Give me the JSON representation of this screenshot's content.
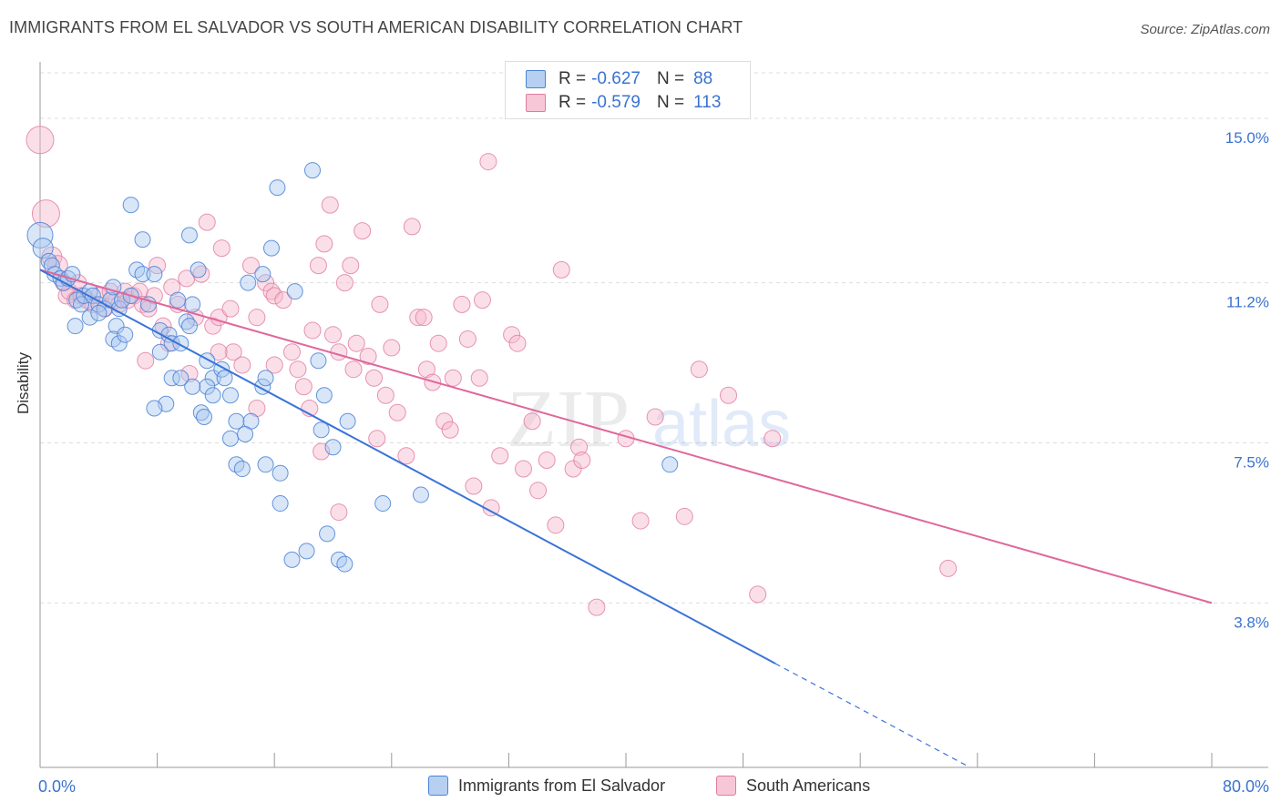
{
  "title": "IMMIGRANTS FROM EL SALVADOR VS SOUTH AMERICAN DISABILITY CORRELATION CHART",
  "source": "Source: ZipAtlas.com",
  "watermark": {
    "part1": "ZIP",
    "part2": "atlas"
  },
  "legend_top": [
    {
      "r_label": "R = ",
      "r_value": "-0.627",
      "n_label": "N = ",
      "n_value": "88"
    },
    {
      "r_label": "R = ",
      "r_value": "-0.579",
      "n_label": "N = ",
      "n_value": "113"
    }
  ],
  "colors": {
    "blue_fill": "#a9c8f0",
    "blue_stroke": "#4a83d6",
    "blue_line": "#3a73d8",
    "pink_fill": "#f6b9cd",
    "pink_stroke": "#e07aa0",
    "pink_line": "#e0679a",
    "tick_label": "#3a73d0",
    "grid": "#dddddd"
  },
  "chart_data": {
    "type": "scatter",
    "title": "IMMIGRANTS FROM EL SALVADOR VS SOUTH AMERICAN DISABILITY CORRELATION CHART",
    "xlabel": "",
    "ylabel": "Disability",
    "xlim": [
      0,
      80
    ],
    "ylim": [
      0,
      16.2
    ],
    "x_tick_labels": [
      "0.0%",
      "80.0%"
    ],
    "y_ticks": [
      3.8,
      7.5,
      11.2,
      15.0
    ],
    "y_tick_labels": [
      "3.8%",
      "7.5%",
      "11.2%",
      "15.0%"
    ],
    "grid": true,
    "legend_position": "bottom",
    "series": [
      {
        "name": "Immigrants from El Salvador",
        "color": "#a9c8f0",
        "r": -0.627,
        "n": 88,
        "trend": {
          "x": [
            0,
            50.2
          ],
          "y": [
            11.5,
            2.4
          ],
          "dashed_to": [
            63.5,
            0
          ]
        },
        "points": [
          [
            0,
            12.3
          ],
          [
            0.2,
            12.0
          ],
          [
            0.6,
            11.7
          ],
          [
            0.8,
            11.6
          ],
          [
            1,
            11.4
          ],
          [
            1.4,
            11.3
          ],
          [
            1.6,
            11.2
          ],
          [
            1.9,
            11.3
          ],
          [
            2.2,
            11.4
          ],
          [
            2.5,
            10.8
          ],
          [
            2.8,
            10.7
          ],
          [
            3.0,
            10.9
          ],
          [
            3.4,
            11.0
          ],
          [
            3.6,
            10.9
          ],
          [
            4.0,
            10.7
          ],
          [
            4.4,
            10.6
          ],
          [
            4.8,
            10.8
          ],
          [
            5.0,
            11.1
          ],
          [
            5.4,
            10.6
          ],
          [
            5.6,
            10.8
          ],
          [
            2.4,
            10.2
          ],
          [
            3.4,
            10.4
          ],
          [
            4.0,
            10.5
          ],
          [
            5.2,
            10.2
          ],
          [
            5.0,
            9.9
          ],
          [
            5.4,
            9.8
          ],
          [
            5.8,
            10.0
          ],
          [
            6.2,
            10.9
          ],
          [
            6.6,
            11.5
          ],
          [
            7.0,
            11.4
          ],
          [
            7.4,
            10.7
          ],
          [
            7.0,
            12.2
          ],
          [
            7.8,
            11.4
          ],
          [
            6.2,
            13.0
          ],
          [
            8.2,
            10.1
          ],
          [
            8.8,
            10.0
          ],
          [
            8.2,
            9.6
          ],
          [
            9.0,
            9.8
          ],
          [
            9.4,
            10.8
          ],
          [
            10.0,
            10.3
          ],
          [
            10.2,
            10.2
          ],
          [
            9.6,
            9.8
          ],
          [
            10.4,
            10.7
          ],
          [
            10.2,
            12.3
          ],
          [
            10.8,
            11.5
          ],
          [
            11.4,
            9.4
          ],
          [
            11.8,
            9.0
          ],
          [
            11.4,
            8.8
          ],
          [
            11.8,
            8.6
          ],
          [
            12.4,
            9.2
          ],
          [
            12.6,
            9.0
          ],
          [
            13.0,
            8.6
          ],
          [
            10.4,
            8.8
          ],
          [
            9.0,
            9.0
          ],
          [
            9.6,
            9.0
          ],
          [
            8.6,
            8.4
          ],
          [
            7.8,
            8.3
          ],
          [
            11.0,
            8.2
          ],
          [
            11.2,
            8.1
          ],
          [
            13.4,
            8.0
          ],
          [
            14.4,
            8.0
          ],
          [
            13.0,
            7.6
          ],
          [
            14.0,
            7.7
          ],
          [
            13.4,
            7.0
          ],
          [
            13.8,
            6.9
          ],
          [
            15.2,
            8.8
          ],
          [
            15.4,
            9.0
          ],
          [
            14.2,
            11.2
          ],
          [
            15.2,
            11.4
          ],
          [
            15.8,
            12.0
          ],
          [
            16.2,
            13.4
          ],
          [
            17.4,
            11.0
          ],
          [
            18.6,
            13.8
          ],
          [
            16.4,
            6.8
          ],
          [
            15.4,
            7.0
          ],
          [
            16.4,
            6.1
          ],
          [
            19.2,
            7.8
          ],
          [
            19.0,
            9.4
          ],
          [
            19.4,
            8.6
          ],
          [
            20.0,
            7.4
          ],
          [
            21.0,
            8.0
          ],
          [
            17.2,
            4.8
          ],
          [
            18.2,
            5.0
          ],
          [
            19.6,
            5.4
          ],
          [
            20.4,
            4.8
          ],
          [
            20.8,
            4.7
          ],
          [
            23.4,
            6.1
          ],
          [
            26.0,
            6.3
          ],
          [
            43.0,
            7.0
          ]
        ]
      },
      {
        "name": "South Americans",
        "color": "#f6b9cd",
        "r": -0.579,
        "n": 113,
        "trend": {
          "x": [
            0,
            80
          ],
          "y": [
            11.5,
            3.8
          ]
        },
        "points": [
          [
            0,
            14.5
          ],
          [
            0.4,
            12.8
          ],
          [
            0.8,
            11.8
          ],
          [
            1.2,
            11.6
          ],
          [
            1.6,
            11.2
          ],
          [
            1.8,
            10.9
          ],
          [
            2.0,
            11.0
          ],
          [
            2.4,
            10.8
          ],
          [
            2.6,
            11.2
          ],
          [
            2.8,
            10.9
          ],
          [
            3.2,
            10.8
          ],
          [
            3.6,
            10.7
          ],
          [
            4.0,
            10.9
          ],
          [
            4.4,
            10.6
          ],
          [
            4.8,
            11.0
          ],
          [
            5.2,
            10.8
          ],
          [
            5.4,
            10.7
          ],
          [
            5.8,
            11.0
          ],
          [
            6.0,
            10.8
          ],
          [
            6.4,
            10.9
          ],
          [
            6.8,
            11.0
          ],
          [
            7.0,
            10.7
          ],
          [
            7.4,
            10.6
          ],
          [
            7.8,
            10.9
          ],
          [
            8.0,
            11.6
          ],
          [
            8.4,
            10.2
          ],
          [
            9.0,
            11.1
          ],
          [
            9.4,
            10.7
          ],
          [
            10.0,
            11.3
          ],
          [
            10.6,
            10.4
          ],
          [
            11.0,
            11.4
          ],
          [
            11.4,
            12.6
          ],
          [
            11.8,
            10.2
          ],
          [
            12.2,
            10.4
          ],
          [
            12.4,
            12.0
          ],
          [
            13.0,
            10.6
          ],
          [
            13.2,
            9.6
          ],
          [
            13.8,
            9.3
          ],
          [
            14.4,
            11.6
          ],
          [
            14.8,
            10.4
          ],
          [
            15.4,
            11.2
          ],
          [
            15.8,
            11.0
          ],
          [
            16.0,
            10.9
          ],
          [
            16.6,
            10.8
          ],
          [
            17.2,
            9.6
          ],
          [
            17.6,
            9.2
          ],
          [
            18.0,
            8.8
          ],
          [
            18.4,
            8.3
          ],
          [
            19.0,
            11.6
          ],
          [
            19.4,
            12.1
          ],
          [
            19.8,
            13.0
          ],
          [
            20.0,
            10.0
          ],
          [
            20.4,
            9.6
          ],
          [
            20.8,
            11.2
          ],
          [
            21.2,
            11.6
          ],
          [
            21.4,
            9.2
          ],
          [
            22.0,
            12.4
          ],
          [
            22.4,
            9.5
          ],
          [
            22.8,
            9.0
          ],
          [
            23.2,
            10.7
          ],
          [
            23.6,
            8.6
          ],
          [
            24.0,
            9.7
          ],
          [
            24.4,
            8.2
          ],
          [
            25.0,
            7.2
          ],
          [
            25.4,
            12.5
          ],
          [
            25.8,
            10.4
          ],
          [
            26.4,
            9.2
          ],
          [
            26.8,
            8.9
          ],
          [
            27.2,
            9.8
          ],
          [
            27.6,
            8.0
          ],
          [
            28.0,
            7.8
          ],
          [
            28.2,
            9.0
          ],
          [
            28.8,
            10.7
          ],
          [
            29.2,
            9.9
          ],
          [
            29.6,
            6.5
          ],
          [
            30.2,
            10.8
          ],
          [
            30.6,
            14.0
          ],
          [
            30.8,
            6.0
          ],
          [
            31.4,
            7.2
          ],
          [
            32.2,
            10.0
          ],
          [
            32.6,
            9.8
          ],
          [
            33.0,
            6.9
          ],
          [
            33.6,
            8.0
          ],
          [
            34.0,
            6.4
          ],
          [
            34.6,
            7.1
          ],
          [
            35.2,
            5.6
          ],
          [
            35.6,
            11.5
          ],
          [
            36.4,
            6.9
          ],
          [
            36.8,
            7.4
          ],
          [
            37.0,
            7.1
          ],
          [
            38.0,
            3.7
          ],
          [
            40.0,
            7.6
          ],
          [
            41.0,
            5.7
          ],
          [
            42.0,
            8.1
          ],
          [
            44.0,
            5.8
          ],
          [
            45.0,
            9.2
          ],
          [
            47.0,
            8.6
          ],
          [
            49.0,
            4.0
          ],
          [
            50.0,
            7.6
          ],
          [
            62.0,
            4.6
          ],
          [
            10.2,
            9.1
          ],
          [
            12.2,
            9.6
          ],
          [
            14.8,
            8.3
          ],
          [
            16.0,
            9.3
          ],
          [
            18.6,
            10.1
          ],
          [
            19.2,
            7.3
          ],
          [
            20.4,
            5.9
          ],
          [
            21.6,
            9.8
          ],
          [
            7.2,
            9.4
          ],
          [
            8.8,
            9.8
          ],
          [
            26.2,
            10.4
          ],
          [
            23.0,
            7.6
          ],
          [
            30.0,
            9.0
          ]
        ]
      }
    ]
  },
  "legend_bottom": [
    "Immigrants from El Salvador",
    "South Americans"
  ]
}
